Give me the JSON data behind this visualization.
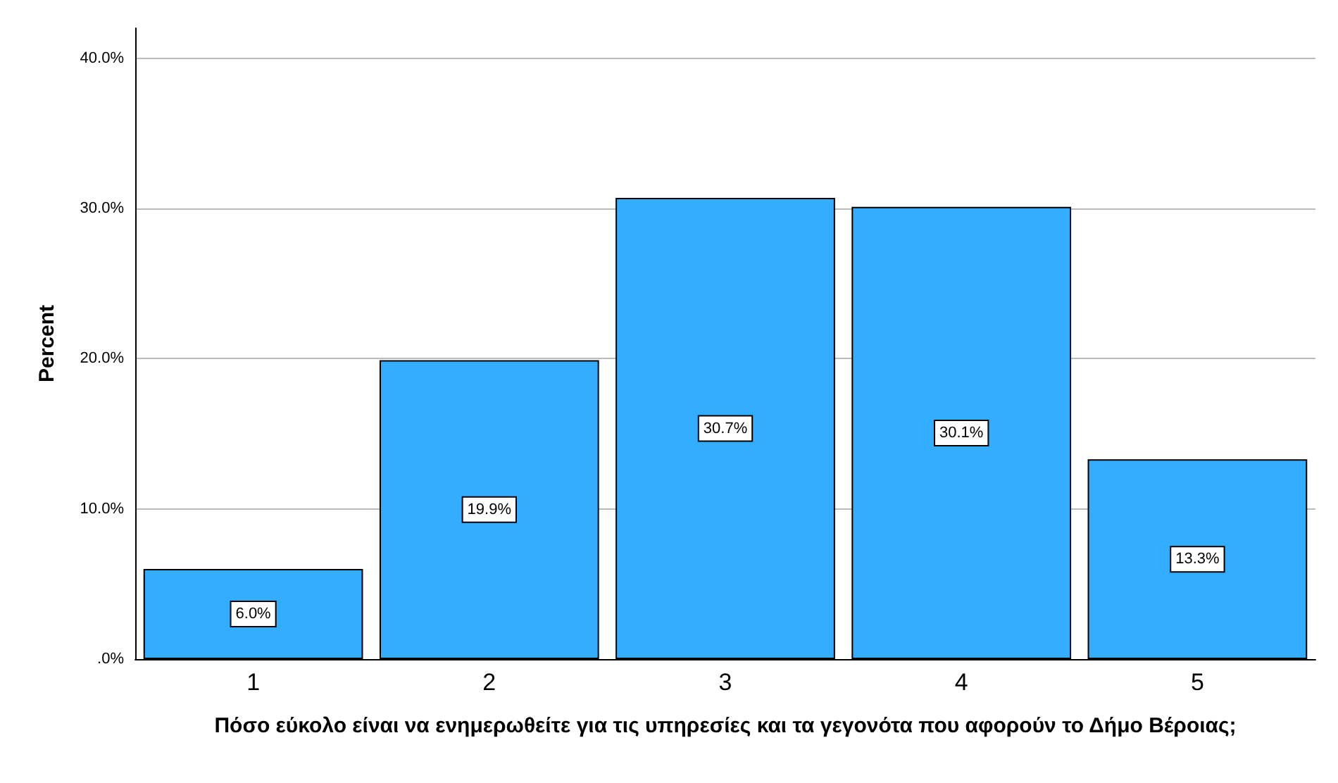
{
  "chart_data": {
    "type": "bar",
    "xlabel": "Πόσο εύκολο είναι να ενημερωθείτε για τις υπηρεσίες και τα γεγονότα που αφορούν το Δήμο Βέροιας;",
    "ylabel": "Percent",
    "categories": [
      "1",
      "2",
      "3",
      "4",
      "5"
    ],
    "values": [
      6.0,
      19.9,
      30.7,
      30.1,
      13.3
    ],
    "value_labels": [
      "6.0%",
      "19.9%",
      "30.7%",
      "30.1%",
      "13.3%"
    ],
    "color": "#33adff",
    "ylim": [
      0,
      42
    ],
    "yticks": [
      {
        "value": 0,
        "label": ".0%"
      },
      {
        "value": 10,
        "label": "10.0%"
      },
      {
        "value": 20,
        "label": "20.0%"
      },
      {
        "value": 30,
        "label": "30.0%"
      },
      {
        "value": 40,
        "label": "40.0%"
      }
    ],
    "grid": "y"
  }
}
